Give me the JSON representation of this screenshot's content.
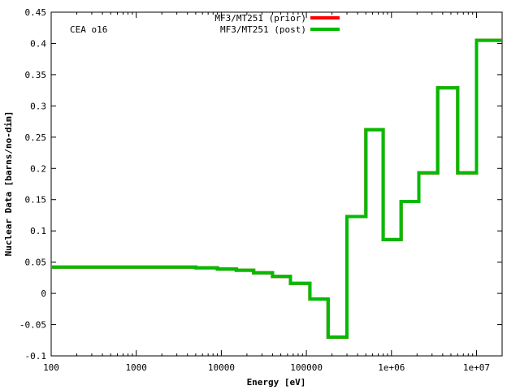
{
  "chart_data": {
    "type": "line",
    "step": true,
    "xscale": "log",
    "xlim": [
      100,
      20000000
    ],
    "ylim": [
      -0.1,
      0.45
    ],
    "xlabel": "Energy [eV]",
    "ylabel": "Nuclear Data [barns/no-dim]",
    "annotation": "CEA o16",
    "x_ticks": [
      100,
      1000,
      10000,
      100000,
      1000000,
      10000000
    ],
    "x_tick_labels": [
      "100",
      "1000",
      "10000",
      "100000",
      "1e+06",
      "1e+07"
    ],
    "y_ticks": [
      -0.1,
      -0.05,
      0,
      0.05,
      0.1,
      0.15,
      0.2,
      0.25,
      0.3,
      0.35,
      0.4,
      0.45
    ],
    "y_tick_labels": [
      "-0.1",
      "-0.05",
      "0",
      "0.05",
      "0.1",
      "0.15",
      "0.2",
      "0.25",
      "0.3",
      "0.35",
      "0.4",
      "0.45"
    ],
    "legend_position": "top-center",
    "series": [
      {
        "name": "MF3/MT251 (prior)",
        "color": "#ff0000",
        "bins": [
          [
            100,
            5000,
            0.042
          ],
          [
            5000,
            9000,
            0.041
          ],
          [
            9000,
            15000,
            0.039
          ],
          [
            15000,
            24000,
            0.037
          ],
          [
            24000,
            40000,
            0.033
          ],
          [
            40000,
            65000,
            0.027
          ],
          [
            65000,
            110000,
            0.016
          ],
          [
            110000,
            180000,
            -0.009
          ],
          [
            180000,
            300000,
            -0.07
          ],
          [
            300000,
            500000,
            0.123
          ],
          [
            500000,
            800000,
            0.262
          ],
          [
            800000,
            1300000,
            0.086
          ],
          [
            1300000,
            2100000,
            0.147
          ],
          [
            2100000,
            3500000,
            0.193
          ],
          [
            3500000,
            6000000,
            0.329
          ],
          [
            6000000,
            10000000,
            0.193
          ],
          [
            10000000,
            20000000,
            0.405
          ]
        ]
      },
      {
        "name": "MF3/MT251 (post)",
        "color": "#00bb00",
        "bins": [
          [
            100,
            5000,
            0.042
          ],
          [
            5000,
            9000,
            0.041
          ],
          [
            9000,
            15000,
            0.039
          ],
          [
            15000,
            24000,
            0.037
          ],
          [
            24000,
            40000,
            0.033
          ],
          [
            40000,
            65000,
            0.027
          ],
          [
            65000,
            110000,
            0.016
          ],
          [
            110000,
            180000,
            -0.009
          ],
          [
            180000,
            300000,
            -0.07
          ],
          [
            300000,
            500000,
            0.123
          ],
          [
            500000,
            800000,
            0.262
          ],
          [
            800000,
            1300000,
            0.086
          ],
          [
            1300000,
            2100000,
            0.147
          ],
          [
            2100000,
            3500000,
            0.193
          ],
          [
            3500000,
            6000000,
            0.329
          ],
          [
            6000000,
            10000000,
            0.193
          ],
          [
            10000000,
            20000000,
            0.405
          ]
        ]
      }
    ]
  }
}
